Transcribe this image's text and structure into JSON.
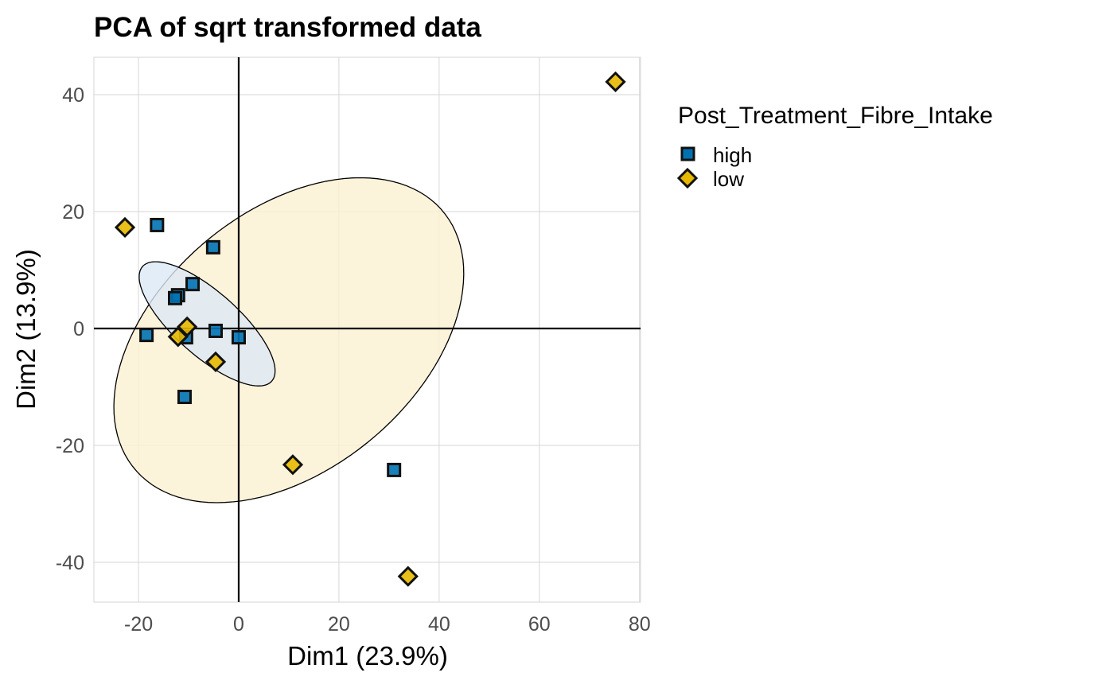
{
  "chart_data": {
    "type": "scatter",
    "title": "PCA of sqrt transformed data",
    "xlabel": "Dim1 (23.9%)",
    "ylabel": "Dim2 (13.9%)",
    "xlim": [
      -28.9,
      80.2
    ],
    "ylim": [
      -46.8,
      46.4
    ],
    "xticks": [
      -20,
      0,
      20,
      40,
      60,
      80
    ],
    "yticks": [
      -40,
      -20,
      0,
      20,
      40
    ],
    "grid": true,
    "legend": {
      "title": "Post_Treatment_Fibre_Intake",
      "position": "right"
    },
    "series": [
      {
        "name": "high",
        "color": "#0072B2",
        "shape": "square",
        "points": [
          [
            -16.3,
            17.7
          ],
          [
            -5.1,
            13.9
          ],
          [
            -9.2,
            7.6
          ],
          [
            -12.1,
            5.7
          ],
          [
            -12.7,
            5.2
          ],
          [
            -18.4,
            -1.1
          ],
          [
            -4.6,
            -0.4
          ],
          [
            0,
            -1.5
          ],
          [
            -10.5,
            -1.5
          ],
          [
            -10.8,
            -11.7
          ],
          [
            31.0,
            -24.2
          ]
        ],
        "ellipse": {
          "center": [
            -6.3,
            0.8
          ],
          "u": [
            12.9,
            -9.8
          ],
          "v": [
            4.2,
            4.1
          ],
          "fill": "#dce9f5"
        }
      },
      {
        "name": "low",
        "color": "#E7B800",
        "shape": "diamond",
        "points": [
          [
            -22.7,
            17.3
          ],
          [
            75.2,
            42.2
          ],
          [
            -10.3,
            0.3
          ],
          [
            -12.1,
            -1.4
          ],
          [
            -4.6,
            -5.7
          ],
          [
            10.8,
            -23.3
          ],
          [
            33.8,
            -42.4
          ]
        ],
        "ellipse": {
          "center": [
            10.0,
            -2.0
          ],
          "u": [
            34.1,
            5.7
          ],
          "v": [
            7.5,
            27.2
          ],
          "fill": "#fbf0d2"
        }
      }
    ]
  }
}
